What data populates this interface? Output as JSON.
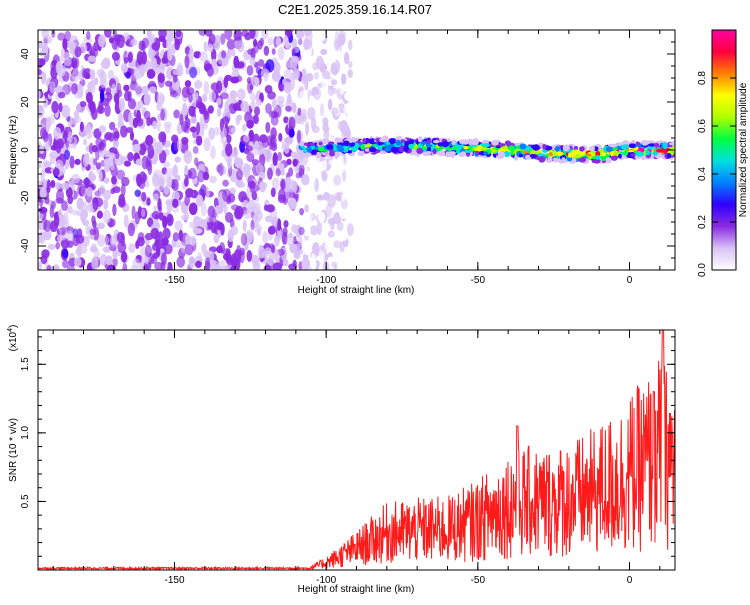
{
  "title": "C2E1.2025.359.16.14.R07",
  "chart_data": [
    {
      "type": "heatmap",
      "title": "C2E1.2025.359.16.14.R07",
      "xlabel": "Height of straight line (km)",
      "ylabel": "Frequency (Hz)",
      "xlim": [
        -195,
        15
      ],
      "ylim": [
        -50,
        50
      ],
      "xticks": [
        -150,
        -100,
        -50,
        0
      ],
      "xtick_labels": [
        "-150",
        "-100",
        "-50",
        "0"
      ],
      "yticks": [
        -40,
        -20,
        0,
        20,
        40
      ],
      "ytick_labels": [
        "-40",
        "-20",
        "0",
        "20",
        "40"
      ],
      "noise_region_km": [
        -195,
        -100
      ],
      "signal_region_km": [
        -108,
        15
      ],
      "signal_center_hz": [
        {
          "x": -105,
          "y": 0.5
        },
        {
          "x": -90,
          "y": 1.5
        },
        {
          "x": -80,
          "y": 2
        },
        {
          "x": -70,
          "y": 1.5
        },
        {
          "x": -55,
          "y": 0.8
        },
        {
          "x": -40,
          "y": 0
        },
        {
          "x": -25,
          "y": -1.5
        },
        {
          "x": -10,
          "y": -1.8
        },
        {
          "x": 0,
          "y": 0
        },
        {
          "x": 15,
          "y": 0
        }
      ],
      "colorbar": {
        "label": "Normalized spectral amplitude",
        "range": [
          0,
          1
        ],
        "ticks": [
          0.0,
          0.2,
          0.4,
          0.6,
          0.8
        ],
        "tick_labels": [
          "0.0",
          "0.2",
          "0.4",
          "0.6",
          "0.8"
        ],
        "colors": [
          "#ffffff",
          "#d9c2f5",
          "#8a2be2",
          "#3000ff",
          "#0080ff",
          "#00e0e0",
          "#00ff40",
          "#b0ff00",
          "#ffff00",
          "#ff8000",
          "#ff0040",
          "#ff00a0"
        ]
      }
    },
    {
      "type": "line",
      "title": "",
      "xlabel": "Height of straight line (km)",
      "ylabel": "SNR (10 * v/v)",
      "multiplier_label": "(x10",
      "multiplier_exp": "4",
      "multiplier_close": ")",
      "xlim": [
        -195,
        15
      ],
      "ylim": [
        0,
        1.75
      ],
      "xticks": [
        -150,
        -100,
        -50,
        0
      ],
      "xtick_labels": [
        "-150",
        "-100",
        "-50",
        "0"
      ],
      "yticks": [
        0.5,
        1.0,
        1.5
      ],
      "ytick_labels": [
        "0.5",
        "1.0",
        "1.5"
      ],
      "line_color": "#ff1a1a",
      "envelope": [
        {
          "x": -195,
          "y": 0.02
        },
        {
          "x": -105,
          "y": 0.02
        },
        {
          "x": -100,
          "y": 0.06
        },
        {
          "x": -92,
          "y": 0.15
        },
        {
          "x": -80,
          "y": 0.3
        },
        {
          "x": -70,
          "y": 0.32
        },
        {
          "x": -60,
          "y": 0.33
        },
        {
          "x": -50,
          "y": 0.4
        },
        {
          "x": -38,
          "y": 0.55
        },
        {
          "x": -25,
          "y": 0.55
        },
        {
          "x": -15,
          "y": 0.6
        },
        {
          "x": -5,
          "y": 0.7
        },
        {
          "x": 5,
          "y": 0.85
        },
        {
          "x": 10,
          "y": 0.95
        },
        {
          "x": 15,
          "y": 0.85
        }
      ],
      "peaks": [
        {
          "x": -37,
          "y": 1.05
        },
        {
          "x": 8,
          "y": 1.3
        },
        {
          "x": 11,
          "y": 1.75
        }
      ]
    }
  ]
}
